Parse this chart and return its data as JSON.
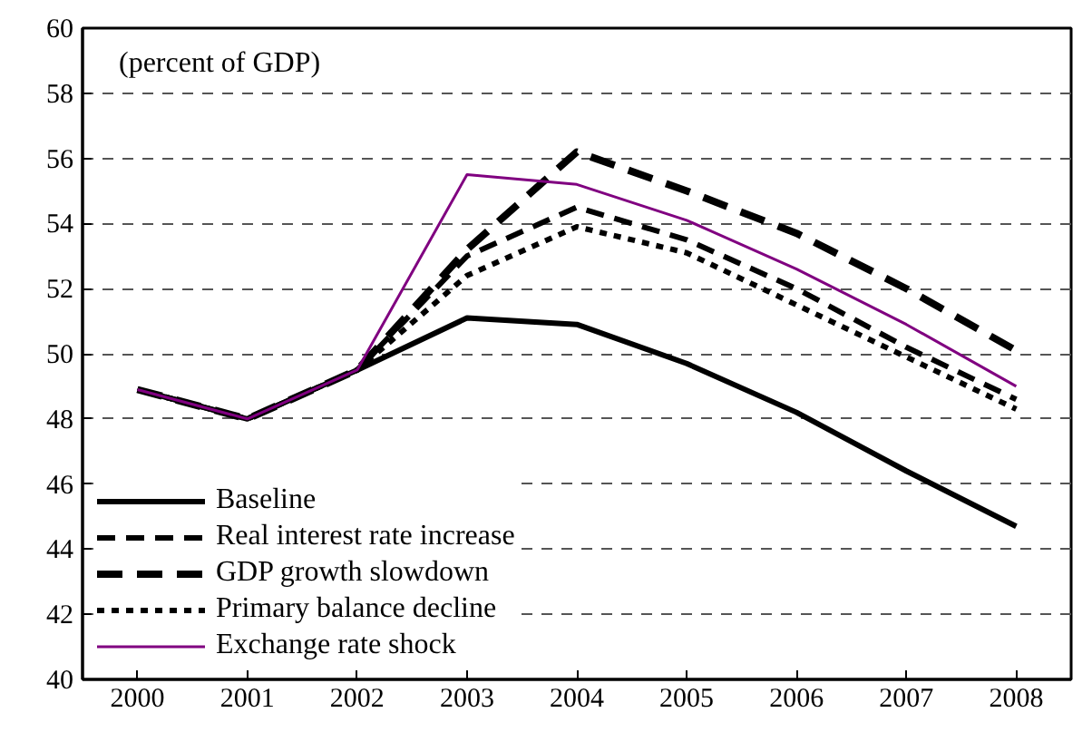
{
  "chart_data": {
    "type": "line",
    "categories": [
      "2000",
      "2001",
      "2002",
      "2003",
      "2004",
      "2005",
      "2006",
      "2007",
      "2008"
    ],
    "ylim": [
      40,
      60
    ],
    "yticks": [
      40,
      42,
      44,
      46,
      48,
      50,
      52,
      54,
      56,
      58,
      60
    ],
    "grid": "y",
    "legend": "bottom left",
    "marker": "none",
    "annotations": [
      "(percent of GDP)"
    ],
    "series": [
      {
        "name": "Baseline",
        "color": "#000000",
        "line_style": "solid",
        "values": [
          48.9,
          48.0,
          49.5,
          51.1,
          50.9,
          49.7,
          48.2,
          46.4,
          44.7
        ]
      },
      {
        "name": "Real interest rate increase",
        "color": "#000000",
        "line_style": "dashed",
        "values": [
          48.9,
          48.0,
          49.5,
          53.0,
          54.5,
          53.5,
          52.0,
          50.2,
          48.6
        ]
      },
      {
        "name": "GDP growth slowdown",
        "color": "#000000",
        "line_style": "dashed",
        "values": [
          48.9,
          48.0,
          49.5,
          53.2,
          56.2,
          55.0,
          53.7,
          52.0,
          50.1
        ]
      },
      {
        "name": "Primary balance decline",
        "color": "#000000",
        "line_style": "dotted",
        "values": [
          48.9,
          48.0,
          49.5,
          52.4,
          53.9,
          53.1,
          51.5,
          49.9,
          48.3
        ]
      },
      {
        "name": "Exchange rate shock",
        "color": "#800080",
        "line_style": "solid",
        "values": [
          48.9,
          48.0,
          49.5,
          55.5,
          55.2,
          54.1,
          52.6,
          50.9,
          49.0
        ]
      }
    ]
  }
}
